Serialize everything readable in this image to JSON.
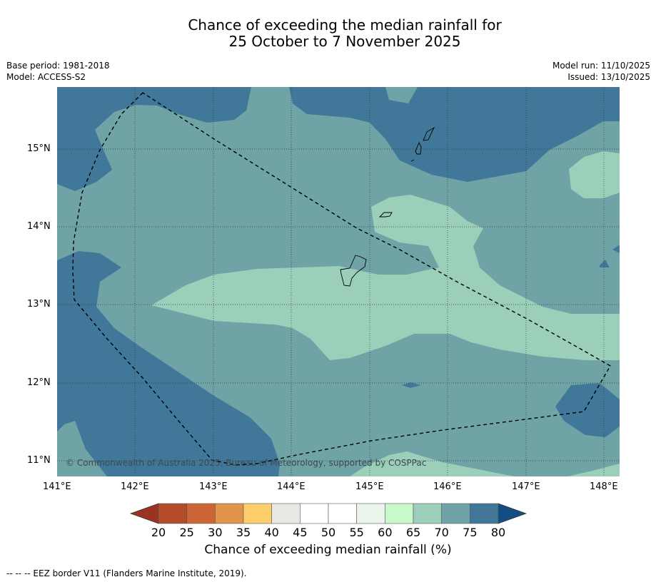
{
  "title_line1": "Chance of exceeding the median rainfall for",
  "title_line2": "25 October to 7 November 2025",
  "base_period": "Base period: 1981-2018",
  "model": "Model: ACCESS-S2",
  "model_run": "Model run: 11/10/2025",
  "issued": "Issued: 13/10/2025",
  "lon_ticks": [
    "141°E",
    "142°E",
    "143°E",
    "144°E",
    "145°E",
    "146°E",
    "147°E",
    "148°E"
  ],
  "lat_ticks": [
    "15°N",
    "14°N",
    "13°N",
    "12°N",
    "11°N"
  ],
  "copyright": "© Commonwealth of Australia 2025, Bureau of Meteorology, supported by COSPPac",
  "colorbar": {
    "labels": [
      "20",
      "25",
      "30",
      "35",
      "40",
      "45",
      "50",
      "55",
      "60",
      "65",
      "70",
      "75",
      "80"
    ],
    "colors": [
      "#b44c29",
      "#cc6433",
      "#e09548",
      "#fdcf6b",
      "#eae8e4",
      "#ffffff",
      "#ffffff",
      "#e9f4ea",
      "#c9f8cb",
      "#9ccfb9",
      "#6fa3a6",
      "#41789a"
    ],
    "under_color": "#9a3420",
    "over_color": "#134e82",
    "title": "Chance of exceeding median rainfall (%)"
  },
  "footnote": "--  --  -- EEZ border V11 (Flanders Marine Institute, 2019)."
}
